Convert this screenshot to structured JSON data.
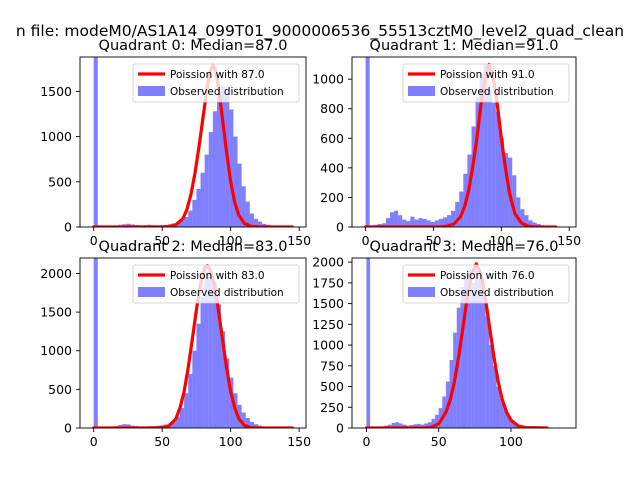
{
  "figure": {
    "suptitle": "n file: modeM0/AS1A14_099T01_9000006536_55513cztM0_level2_quad_clean"
  },
  "colors": {
    "hist": "#0000ff",
    "hist_opacity": 0.5,
    "fit": "#ff0000",
    "axes": "#000000",
    "legend_border": "#cccccc"
  },
  "chart_data": [
    {
      "type": "bar",
      "title": "Quadrant 0: Median=87.0",
      "xlabel": "",
      "ylabel": "",
      "xlim": [
        -10,
        155
      ],
      "ylim": [
        0,
        1880
      ],
      "xticks": [
        0,
        50,
        100,
        150
      ],
      "yticks": [
        0,
        500,
        1000,
        1500
      ],
      "median": 87.0,
      "bin_width": 3,
      "legend": {
        "placement": "top-right",
        "fit_label": "Poission with 87.0",
        "hist_label": "Observed distribution"
      },
      "hist": {
        "x": [
          0,
          3,
          6,
          9,
          12,
          15,
          18,
          21,
          24,
          27,
          30,
          33,
          36,
          39,
          42,
          45,
          48,
          51,
          54,
          57,
          60,
          63,
          66,
          69,
          72,
          75,
          78,
          81,
          84,
          87,
          90,
          93,
          96,
          99,
          102,
          105,
          108,
          111,
          114,
          117,
          120,
          123,
          126,
          129,
          132,
          135,
          138,
          141,
          144,
          147
        ],
        "counts": [
          1880,
          5,
          8,
          10,
          14,
          18,
          25,
          30,
          35,
          28,
          22,
          18,
          20,
          25,
          20,
          18,
          20,
          22,
          30,
          40,
          50,
          70,
          110,
          180,
          300,
          420,
          600,
          800,
          1050,
          1280,
          1450,
          1550,
          1480,
          1300,
          1000,
          700,
          450,
          280,
          150,
          90,
          60,
          35,
          25,
          15,
          10,
          8,
          6,
          4,
          3,
          2
        ]
      },
      "fit": {
        "x": [
          0,
          50,
          55,
          60,
          65,
          68,
          71,
          74,
          77,
          80,
          83,
          85,
          87,
          89,
          91,
          94,
          97,
          100,
          103,
          106,
          110,
          115,
          120,
          130,
          145
        ],
        "y": [
          0,
          0,
          5,
          25,
          90,
          190,
          360,
          600,
          900,
          1230,
          1560,
          1720,
          1790,
          1730,
          1560,
          1200,
          830,
          500,
          270,
          130,
          40,
          8,
          2,
          0,
          0
        ]
      }
    },
    {
      "type": "bar",
      "title": "Quadrant 1: Median=91.0",
      "xlabel": "",
      "ylabel": "",
      "xlim": [
        -10,
        155
      ],
      "ylim": [
        0,
        1150
      ],
      "xticks": [
        0,
        50,
        100,
        150
      ],
      "yticks": [
        0,
        200,
        400,
        600,
        800,
        1000
      ],
      "median": 91.0,
      "bin_width": 3,
      "legend": {
        "placement": "top-right",
        "fit_label": "Poission with 91.0",
        "hist_label": "Observed distribution"
      },
      "hist": {
        "x": [
          0,
          3,
          6,
          9,
          12,
          15,
          18,
          21,
          24,
          27,
          30,
          33,
          36,
          39,
          42,
          45,
          48,
          51,
          54,
          57,
          60,
          63,
          66,
          69,
          72,
          75,
          78,
          81,
          84,
          87,
          90,
          93,
          96,
          99,
          102,
          105,
          108,
          111,
          114,
          117,
          120,
          123,
          126,
          129,
          132,
          135,
          138,
          141
        ],
        "counts": [
          1150,
          10,
          15,
          20,
          25,
          60,
          100,
          110,
          80,
          50,
          40,
          70,
          50,
          60,
          55,
          45,
          35,
          45,
          55,
          65,
          80,
          110,
          170,
          240,
          360,
          490,
          680,
          880,
          1040,
          1100,
          930,
          840,
          780,
          600,
          500,
          470,
          350,
          200,
          120,
          80,
          45,
          30,
          20,
          12,
          8,
          5,
          4,
          3
        ]
      },
      "fit": {
        "x": [
          0,
          55,
          60,
          65,
          70,
          73,
          76,
          79,
          82,
          85,
          88,
          91,
          94,
          97,
          100,
          103,
          106,
          110,
          115,
          120,
          125,
          140
        ],
        "y": [
          0,
          0,
          5,
          20,
          70,
          140,
          250,
          410,
          600,
          830,
          1010,
          1100,
          1010,
          830,
          600,
          400,
          230,
          90,
          25,
          5,
          0,
          0
        ]
      }
    },
    {
      "type": "bar",
      "title": "Quadrant 2: Median=83.0",
      "xlabel": "",
      "ylabel": "",
      "xlim": [
        -10,
        155
      ],
      "ylim": [
        0,
        2200
      ],
      "xticks": [
        0,
        50,
        100,
        150
      ],
      "yticks": [
        0,
        500,
        1000,
        1500,
        2000
      ],
      "median": 83.0,
      "bin_width": 3,
      "legend": {
        "placement": "top-right",
        "fit_label": "Poission with 83.0",
        "hist_label": "Observed distribution"
      },
      "hist": {
        "x": [
          0,
          3,
          6,
          9,
          12,
          15,
          18,
          21,
          24,
          27,
          30,
          33,
          36,
          39,
          42,
          45,
          48,
          51,
          54,
          57,
          60,
          63,
          66,
          69,
          72,
          75,
          78,
          81,
          84,
          87,
          90,
          93,
          96,
          99,
          102,
          105,
          108,
          111,
          114,
          117,
          120,
          123,
          126,
          129,
          132,
          135,
          138,
          141,
          144,
          147
        ],
        "counts": [
          2200,
          5,
          8,
          12,
          18,
          25,
          40,
          50,
          45,
          30,
          25,
          20,
          20,
          22,
          25,
          28,
          35,
          45,
          60,
          90,
          150,
          260,
          450,
          700,
          1000,
          1350,
          1700,
          2000,
          2050,
          1900,
          1600,
          1250,
          900,
          650,
          450,
          300,
          200,
          130,
          80,
          50,
          30,
          20,
          12,
          8,
          5,
          4,
          3,
          2,
          2,
          1
        ]
      },
      "fit": {
        "x": [
          0,
          45,
          50,
          55,
          60,
          63,
          66,
          69,
          72,
          75,
          78,
          81,
          83,
          85,
          88,
          91,
          94,
          97,
          100,
          103,
          106,
          110,
          115,
          125,
          145
        ],
        "y": [
          0,
          0,
          5,
          25,
          120,
          260,
          470,
          780,
          1150,
          1530,
          1860,
          2070,
          2100,
          2050,
          1860,
          1530,
          1150,
          780,
          470,
          260,
          120,
          35,
          5,
          0,
          0
        ]
      }
    },
    {
      "type": "bar",
      "title": "Quadrant 3: Median=76.0",
      "xlabel": "",
      "ylabel": "",
      "xlim": [
        -10,
        145
      ],
      "ylim": [
        0,
        2050
      ],
      "xticks": [
        0,
        50,
        100
      ],
      "yticks": [
        0,
        250,
        500,
        750,
        1000,
        1250,
        1500,
        1750,
        2000
      ],
      "median": 76.0,
      "bin_width": 2.5,
      "legend": {
        "placement": "top-right",
        "fit_label": "Poission with 76.0",
        "hist_label": "Observed distribution"
      },
      "hist": {
        "x": [
          0,
          2.5,
          5,
          7.5,
          10,
          12.5,
          15,
          17.5,
          20,
          22.5,
          25,
          27.5,
          30,
          32.5,
          35,
          37.5,
          40,
          42.5,
          45,
          47.5,
          50,
          52.5,
          55,
          57.5,
          60,
          62.5,
          65,
          67.5,
          70,
          72.5,
          75,
          77.5,
          80,
          82.5,
          85,
          87.5,
          90,
          92.5,
          95,
          97.5,
          100,
          102.5,
          105,
          107.5,
          110,
          112.5,
          115,
          117.5,
          120,
          122.5
        ],
        "counts": [
          2050,
          5,
          10,
          15,
          20,
          30,
          40,
          60,
          70,
          55,
          40,
          30,
          35,
          45,
          50,
          40,
          55,
          70,
          110,
          160,
          240,
          380,
          560,
          820,
          1150,
          1450,
          1700,
          1850,
          1900,
          1750,
          1950,
          1800,
          1600,
          1350,
          1000,
          750,
          500,
          350,
          220,
          130,
          80,
          50,
          30,
          20,
          12,
          8,
          5,
          4,
          3,
          2
        ]
      },
      "fit": {
        "x": [
          0,
          40,
          45,
          50,
          55,
          58,
          61,
          64,
          67,
          70,
          73,
          76,
          79,
          82,
          85,
          88,
          91,
          94,
          97,
          100,
          105,
          110,
          125
        ],
        "y": [
          0,
          0,
          10,
          50,
          190,
          340,
          570,
          880,
          1240,
          1600,
          1870,
          1980,
          1870,
          1600,
          1240,
          880,
          570,
          340,
          190,
          95,
          25,
          5,
          0
        ]
      }
    }
  ]
}
